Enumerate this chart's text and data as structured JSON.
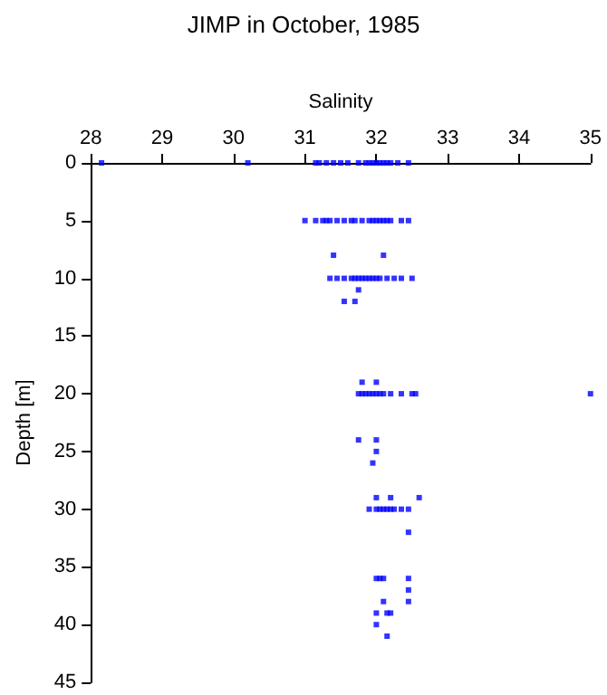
{
  "chart_data": {
    "type": "scatter",
    "title": "JIMP in October, 1985",
    "xlabel": "Salinity",
    "ylabel": "Depth [m]",
    "series": [
      {
        "color": "#0000ff",
        "x": [
          28.15,
          30.2,
          31.15,
          31.2,
          31.3,
          31.4,
          31.5,
          31.6,
          31.75,
          31.85,
          31.9,
          31.95,
          32.0,
          32.05,
          32.1,
          32.15,
          32.2,
          32.3,
          32.45,
          31.0,
          31.15,
          31.25,
          31.3,
          31.35,
          31.45,
          31.55,
          31.65,
          31.7,
          31.8,
          31.9,
          31.95,
          32.0,
          32.05,
          32.1,
          32.15,
          32.2,
          32.35,
          32.45,
          31.4,
          32.1,
          31.35,
          31.45,
          31.55,
          31.65,
          31.7,
          31.75,
          31.8,
          31.85,
          31.9,
          31.95,
          32.0,
          32.05,
          32.15,
          32.25,
          32.35,
          32.5,
          31.75,
          31.55,
          31.7,
          31.8,
          32.0,
          31.75,
          31.8,
          31.85,
          31.9,
          31.95,
          32.0,
          32.05,
          32.1,
          32.2,
          32.35,
          32.5,
          32.55,
          35.0,
          31.75,
          32.0,
          32.0,
          31.95,
          32.0,
          32.2,
          32.6,
          31.9,
          32.0,
          32.05,
          32.1,
          32.15,
          32.2,
          32.25,
          32.35,
          32.45,
          32.45,
          32.0,
          32.05,
          32.1,
          32.45,
          32.45,
          32.1,
          32.45,
          32.0,
          32.15,
          32.2,
          32.0,
          32.15
        ],
        "values": [
          0,
          0,
          0,
          0,
          0,
          0,
          0,
          0,
          0,
          0,
          0,
          0,
          0,
          0,
          0,
          0,
          0,
          0,
          0,
          5,
          5,
          5,
          5,
          5,
          5,
          5,
          5,
          5,
          5,
          5,
          5,
          5,
          5,
          5,
          5,
          5,
          5,
          5,
          8,
          8,
          10,
          10,
          10,
          10,
          10,
          10,
          10,
          10,
          10,
          10,
          10,
          10,
          10,
          10,
          10,
          10,
          11,
          12,
          12,
          19,
          19,
          20,
          20,
          20,
          20,
          20,
          20,
          20,
          20,
          20,
          20,
          20,
          20,
          20,
          24,
          24,
          25,
          26,
          29,
          29,
          29,
          30,
          30,
          30,
          30,
          30,
          30,
          30,
          30,
          30,
          32,
          36,
          36,
          36,
          36,
          37,
          38,
          38,
          39,
          39,
          39,
          40,
          41
        ]
      }
    ],
    "xlim": [
      28,
      35
    ],
    "xticks": [
      28,
      29,
      30,
      31,
      32,
      33,
      34,
      35
    ],
    "ylim": [
      45,
      0
    ],
    "yticks": [
      0,
      5,
      10,
      15,
      20,
      25,
      30,
      35,
      40,
      45
    ],
    "grid": false,
    "marker": "square"
  }
}
